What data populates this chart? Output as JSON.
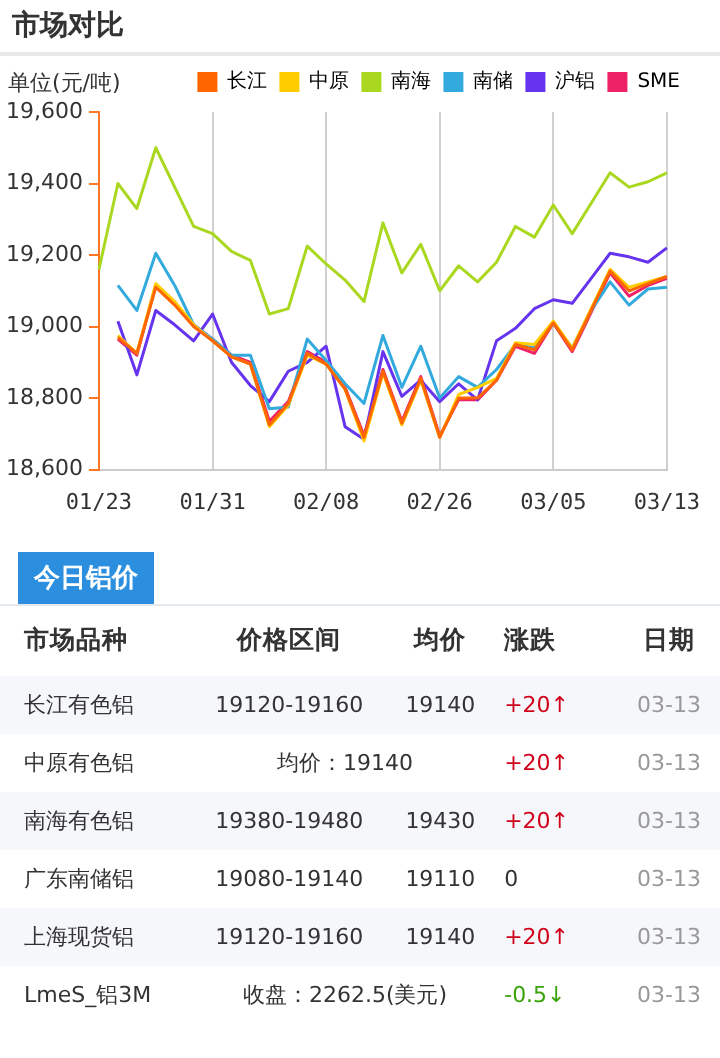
{
  "chart_data": {
    "type": "line",
    "title": "市场对比",
    "ylabel": "单位(元/吨)",
    "categories": [
      "01/23",
      null,
      null,
      null,
      null,
      null,
      "01/31",
      null,
      null,
      null,
      null,
      null,
      "02/08",
      null,
      null,
      null,
      null,
      null,
      "02/26",
      null,
      null,
      null,
      null,
      null,
      "03/05",
      null,
      null,
      null,
      null,
      null,
      "03/13"
    ],
    "series": [
      {
        "name": "长江",
        "color": "#ff6600",
        "values": [
          null,
          18970,
          18925,
          19110,
          19060,
          19000,
          18960,
          18915,
          18895,
          18725,
          18785,
          18925,
          18895,
          18825,
          18690,
          18875,
          18730,
          18855,
          18690,
          18800,
          18800,
          18850,
          18950,
          18935,
          19010,
          18935,
          19045,
          19155,
          19100,
          19120,
          19140
        ]
      },
      {
        "name": "中原",
        "color": "#ffcc00",
        "values": [
          null,
          18975,
          18925,
          19120,
          19070,
          19005,
          18960,
          18915,
          18895,
          18720,
          18780,
          18920,
          18895,
          18825,
          18680,
          18870,
          18725,
          18850,
          18690,
          18810,
          18830,
          18855,
          18955,
          18950,
          19015,
          18940,
          19050,
          19160,
          19110,
          19125,
          19140
        ]
      },
      {
        "name": "南海",
        "color": "#aad820",
        "values": [
          19160,
          19400,
          19330,
          19500,
          19390,
          19280,
          19260,
          19210,
          19185,
          19035,
          19050,
          19225,
          19175,
          19130,
          19070,
          19290,
          19150,
          19230,
          19100,
          19170,
          19125,
          19180,
          19280,
          19250,
          19340,
          19260,
          19345,
          19430,
          19390,
          19405,
          19430
        ]
      },
      {
        "name": "南储",
        "color": "#33aadd",
        "values": [
          null,
          19115,
          19045,
          19205,
          19115,
          19005,
          18965,
          18920,
          18920,
          18770,
          18775,
          18965,
          18905,
          18840,
          18785,
          18975,
          18830,
          18945,
          18800,
          18860,
          18830,
          18880,
          18950,
          18940,
          19010,
          18940,
          19045,
          19125,
          19060,
          19105,
          19110
        ]
      },
      {
        "name": "沪铝",
        "color": "#6633ee",
        "values": [
          null,
          19015,
          18865,
          19045,
          19005,
          18960,
          19035,
          18900,
          18835,
          18790,
          18875,
          18900,
          18945,
          18720,
          18685,
          18930,
          18805,
          18850,
          18790,
          18840,
          18795,
          18960,
          18995,
          19050,
          19075,
          19065,
          19135,
          19205,
          19195,
          19180,
          19220
        ]
      },
      {
        "name": "SME",
        "color": "#ee2266",
        "values": [
          null,
          18965,
          18920,
          19115,
          19065,
          19005,
          18965,
          18920,
          18900,
          18735,
          18790,
          18930,
          18900,
          18830,
          18695,
          18880,
          18735,
          18860,
          18695,
          18795,
          18795,
          18850,
          18945,
          18925,
          19010,
          18930,
          19040,
          19150,
          19085,
          19115,
          19135
        ]
      }
    ],
    "ylim": [
      18600,
      19600
    ],
    "yticks": [
      {
        "value": 18600,
        "label": "18,600"
      },
      {
        "value": 18800,
        "label": "18,800"
      },
      {
        "value": 19000,
        "label": "19,000"
      },
      {
        "value": 19200,
        "label": "19,200"
      },
      {
        "value": 19400,
        "label": "19,400"
      },
      {
        "value": 19600,
        "label": "19,600"
      }
    ],
    "grid": "x",
    "legend": "top right",
    "marker": "none",
    "line_style": "solid",
    "annotations": [
      "今日铝价",
      "市场品种\t价格区间\t均价\t涨跌\t日期",
      "长江有色铝\t19120-19160\t19140\t+20↑\t03-13",
      "中原有色铝\t均价：19140\t+20↑\t03-13",
      "南海有色铝\t19380-19480\t19430\t+20↑\t03-13",
      "广东南储铝\t19080-19140\t19110\t0\t03-13",
      "上海现货铝\t19120-19160\t19140\t+20↑\t03-13",
      "LmeS_铝3M\t收盘：2262.5(美元)\t-0.5↓\t03-13"
    ]
  }
}
